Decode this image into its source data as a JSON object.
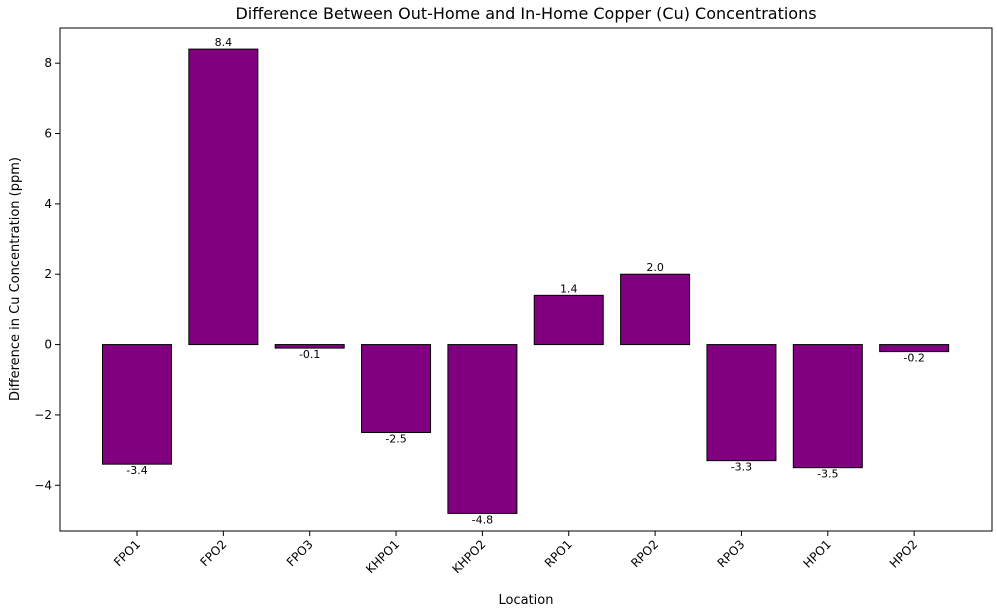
{
  "chart_data": {
    "type": "bar",
    "title": "Difference Between Out-Home and In-Home Copper (Cu) Concentrations",
    "xlabel": "Location",
    "ylabel": "Difference in Cu Concentration (ppm)",
    "categories": [
      "FPO1",
      "FPO2",
      "FPO3",
      "KHPO1",
      "KHPO2",
      "RPO1",
      "RPO2",
      "RPO3",
      "HPO1",
      "HPO2"
    ],
    "values": [
      -3.4,
      8.4,
      -0.1,
      -2.5,
      -4.8,
      1.4,
      2.0,
      -3.3,
      -3.5,
      -0.2
    ],
    "value_labels": [
      "-3.4",
      "8.4",
      "-0.1",
      "-2.5",
      "-4.8",
      "1.4",
      "2.0",
      "-3.3",
      "-3.5",
      "-0.2"
    ],
    "ylim": [
      -5.3,
      9.0
    ],
    "yticks": [
      -4,
      -2,
      0,
      2,
      4,
      6,
      8
    ],
    "ytick_labels": [
      "−4",
      "−2",
      "0",
      "2",
      "4",
      "6",
      "8"
    ],
    "bar_color": "#800080",
    "edge_color": "#000000",
    "grid": false,
    "legend": "none"
  }
}
